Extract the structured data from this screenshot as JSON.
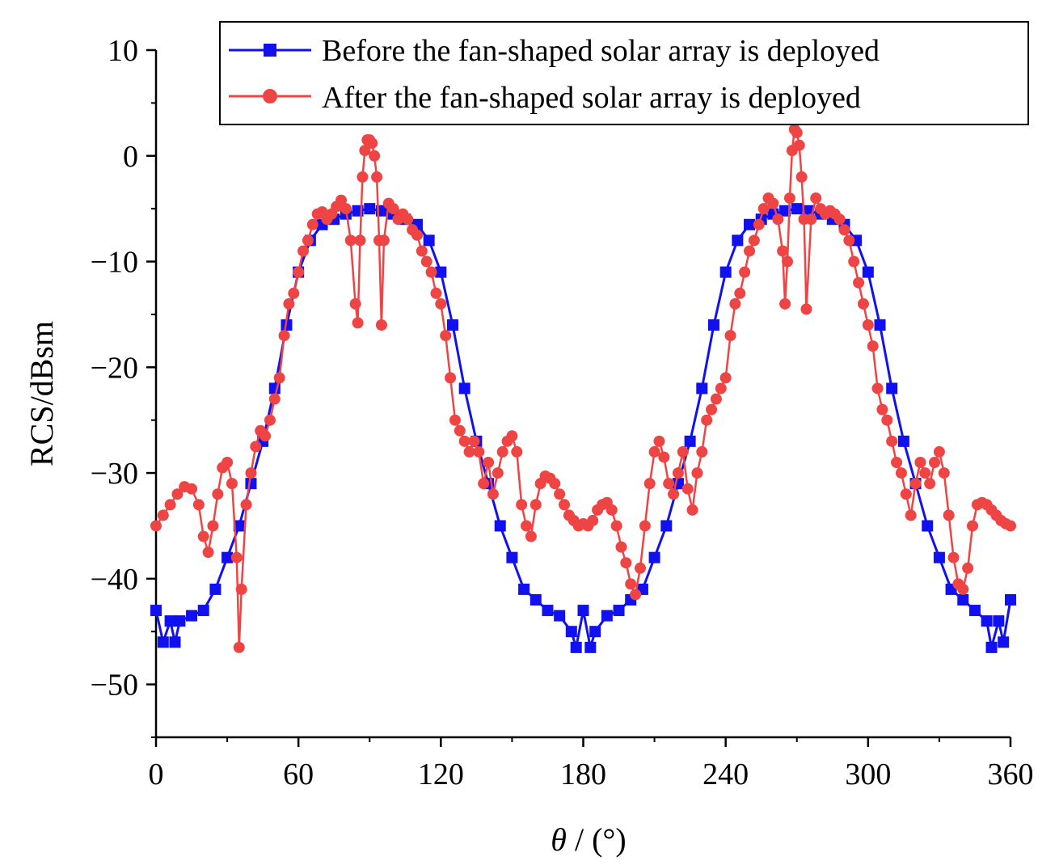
{
  "chart_data": {
    "type": "line",
    "xlabel_symbol": "θ",
    "xlabel_unit": " / (°)",
    "ylabel": "RCS/dBsm",
    "xlim": [
      0,
      360
    ],
    "ylim": [
      -55,
      10
    ],
    "x_ticks": [
      0,
      60,
      120,
      180,
      240,
      300,
      360
    ],
    "y_ticks": [
      10,
      0,
      -10,
      -20,
      -30,
      -40,
      -50
    ],
    "x_tick_labels": [
      "0",
      "60",
      "120",
      "180",
      "240",
      "300",
      "360"
    ],
    "y_tick_labels": [
      "10",
      "0",
      "−10",
      "−20",
      "−30",
      "−40",
      "−50"
    ],
    "grid": false,
    "legend_position": "top-right",
    "series": [
      {
        "name": "Before the fan-shaped solar array is deployed",
        "color": "#1010f0",
        "marker": "square",
        "points": [
          [
            0,
            -43
          ],
          [
            3,
            -46
          ],
          [
            6,
            -44
          ],
          [
            8,
            -46
          ],
          [
            10,
            -44
          ],
          [
            15,
            -43.5
          ],
          [
            20,
            -43
          ],
          [
            25,
            -41
          ],
          [
            30,
            -38
          ],
          [
            35,
            -35
          ],
          [
            40,
            -31
          ],
          [
            45,
            -27
          ],
          [
            50,
            -22
          ],
          [
            55,
            -16
          ],
          [
            60,
            -11
          ],
          [
            65,
            -8
          ],
          [
            70,
            -6.5
          ],
          [
            75,
            -6
          ],
          [
            80,
            -5.5
          ],
          [
            85,
            -5.2
          ],
          [
            90,
            -5
          ],
          [
            95,
            -5.2
          ],
          [
            100,
            -5.5
          ],
          [
            105,
            -6
          ],
          [
            110,
            -6.5
          ],
          [
            115,
            -8
          ],
          [
            120,
            -11
          ],
          [
            125,
            -16
          ],
          [
            130,
            -22
          ],
          [
            135,
            -27
          ],
          [
            140,
            -31
          ],
          [
            145,
            -35
          ],
          [
            150,
            -38
          ],
          [
            155,
            -41
          ],
          [
            160,
            -42
          ],
          [
            165,
            -43
          ],
          [
            170,
            -43.5
          ],
          [
            175,
            -45
          ],
          [
            177,
            -46.5
          ],
          [
            180,
            -43
          ],
          [
            183,
            -46.5
          ],
          [
            185,
            -45
          ],
          [
            190,
            -43.5
          ],
          [
            195,
            -43
          ],
          [
            200,
            -42
          ],
          [
            205,
            -41
          ],
          [
            210,
            -38
          ],
          [
            215,
            -35
          ],
          [
            220,
            -31
          ],
          [
            225,
            -27
          ],
          [
            230,
            -22
          ],
          [
            235,
            -16
          ],
          [
            240,
            -11
          ],
          [
            245,
            -8
          ],
          [
            250,
            -6.5
          ],
          [
            255,
            -6
          ],
          [
            260,
            -5.5
          ],
          [
            265,
            -5.2
          ],
          [
            270,
            -5
          ],
          [
            275,
            -5.2
          ],
          [
            280,
            -5.5
          ],
          [
            285,
            -6
          ],
          [
            290,
            -6.5
          ],
          [
            295,
            -8
          ],
          [
            300,
            -11
          ],
          [
            305,
            -16
          ],
          [
            310,
            -22
          ],
          [
            315,
            -27
          ],
          [
            320,
            -31
          ],
          [
            325,
            -35
          ],
          [
            330,
            -38
          ],
          [
            335,
            -41
          ],
          [
            340,
            -42
          ],
          [
            345,
            -43
          ],
          [
            350,
            -44
          ],
          [
            352,
            -46.5
          ],
          [
            355,
            -44
          ],
          [
            357,
            -46
          ],
          [
            360,
            -42
          ]
        ]
      },
      {
        "name": "After the fan-shaped solar array is deployed",
        "color": "#ee4444",
        "marker": "circle",
        "points": [
          [
            0,
            -35
          ],
          [
            3,
            -34
          ],
          [
            6,
            -33
          ],
          [
            9,
            -32
          ],
          [
            12,
            -31.3
          ],
          [
            15,
            -31.5
          ],
          [
            18,
            -33
          ],
          [
            20,
            -36
          ],
          [
            22,
            -37.5
          ],
          [
            24,
            -35
          ],
          [
            26,
            -32
          ],
          [
            28,
            -29.5
          ],
          [
            30,
            -29
          ],
          [
            32,
            -31
          ],
          [
            34,
            -38
          ],
          [
            35,
            -46.5
          ],
          [
            36,
            -41
          ],
          [
            38,
            -33
          ],
          [
            40,
            -30
          ],
          [
            42,
            -27.5
          ],
          [
            44,
            -26
          ],
          [
            46,
            -26.5
          ],
          [
            48,
            -25
          ],
          [
            50,
            -23
          ],
          [
            52,
            -21
          ],
          [
            54,
            -17
          ],
          [
            56,
            -14
          ],
          [
            58,
            -13
          ],
          [
            60,
            -11
          ],
          [
            62,
            -9
          ],
          [
            64,
            -8
          ],
          [
            66,
            -6.5
          ],
          [
            68,
            -5.5
          ],
          [
            70,
            -5.3
          ],
          [
            72,
            -6
          ],
          [
            74,
            -5.5
          ],
          [
            76,
            -4.8
          ],
          [
            78,
            -4.2
          ],
          [
            80,
            -5
          ],
          [
            82,
            -8
          ],
          [
            84,
            -14
          ],
          [
            85,
            -15.8
          ],
          [
            86,
            -8
          ],
          [
            87,
            -2
          ],
          [
            88,
            0.5
          ],
          [
            89,
            1.5
          ],
          [
            90,
            1.5
          ],
          [
            91,
            1.2
          ],
          [
            92,
            0
          ],
          [
            93,
            -2
          ],
          [
            94,
            -8
          ],
          [
            95,
            -16
          ],
          [
            96,
            -8
          ],
          [
            98,
            -4.5
          ],
          [
            100,
            -5
          ],
          [
            102,
            -6
          ],
          [
            104,
            -5.5
          ],
          [
            106,
            -6
          ],
          [
            108,
            -7
          ],
          [
            110,
            -7.5
          ],
          [
            112,
            -9
          ],
          [
            114,
            -10
          ],
          [
            116,
            -11
          ],
          [
            118,
            -13
          ],
          [
            120,
            -14
          ],
          [
            122,
            -17
          ],
          [
            124,
            -21
          ],
          [
            126,
            -25
          ],
          [
            128,
            -26
          ],
          [
            130,
            -27
          ],
          [
            132,
            -28
          ],
          [
            134,
            -27
          ],
          [
            136,
            -28
          ],
          [
            138,
            -31
          ],
          [
            140,
            -29
          ],
          [
            142,
            -32
          ],
          [
            144,
            -30
          ],
          [
            146,
            -28
          ],
          [
            148,
            -27
          ],
          [
            150,
            -26.5
          ],
          [
            152,
            -28
          ],
          [
            154,
            -33
          ],
          [
            156,
            -35
          ],
          [
            158,
            -36
          ],
          [
            160,
            -33
          ],
          [
            162,
            -31
          ],
          [
            164,
            -30.3
          ],
          [
            166,
            -30.5
          ],
          [
            168,
            -31
          ],
          [
            170,
            -32
          ],
          [
            172,
            -33
          ],
          [
            174,
            -34
          ],
          [
            176,
            -34.5
          ],
          [
            178,
            -35
          ],
          [
            180,
            -34.8
          ],
          [
            182,
            -35
          ],
          [
            184,
            -34.5
          ],
          [
            186,
            -33.5
          ],
          [
            188,
            -33
          ],
          [
            190,
            -32.8
          ],
          [
            192,
            -33.5
          ],
          [
            194,
            -35
          ],
          [
            196,
            -37
          ],
          [
            198,
            -38.5
          ],
          [
            200,
            -40.5
          ],
          [
            202,
            -41.5
          ],
          [
            204,
            -39
          ],
          [
            206,
            -35
          ],
          [
            208,
            -31
          ],
          [
            210,
            -28
          ],
          [
            212,
            -27
          ],
          [
            214,
            -28.5
          ],
          [
            216,
            -31
          ],
          [
            218,
            -32
          ],
          [
            220,
            -30
          ],
          [
            222,
            -28
          ],
          [
            224,
            -31.5
          ],
          [
            226,
            -33.5
          ],
          [
            228,
            -30
          ],
          [
            230,
            -28
          ],
          [
            232,
            -25
          ],
          [
            234,
            -24
          ],
          [
            236,
            -23
          ],
          [
            238,
            -22
          ],
          [
            240,
            -21
          ],
          [
            242,
            -17
          ],
          [
            244,
            -14
          ],
          [
            246,
            -13
          ],
          [
            248,
            -11
          ],
          [
            250,
            -9
          ],
          [
            252,
            -8
          ],
          [
            254,
            -6.5
          ],
          [
            256,
            -5
          ],
          [
            258,
            -4
          ],
          [
            260,
            -4.5
          ],
          [
            262,
            -6
          ],
          [
            264,
            -9
          ],
          [
            265,
            -14
          ],
          [
            266,
            -10
          ],
          [
            267,
            -4
          ],
          [
            268,
            0.5
          ],
          [
            269,
            2.5
          ],
          [
            270,
            2.2
          ],
          [
            271,
            1
          ],
          [
            272,
            -2
          ],
          [
            273,
            -6
          ],
          [
            274,
            -14.5
          ],
          [
            276,
            -6
          ],
          [
            278,
            -4
          ],
          [
            280,
            -5
          ],
          [
            282,
            -5.5
          ],
          [
            284,
            -5.2
          ],
          [
            286,
            -5.5
          ],
          [
            288,
            -6
          ],
          [
            290,
            -7
          ],
          [
            292,
            -8
          ],
          [
            294,
            -10
          ],
          [
            296,
            -12
          ],
          [
            298,
            -14
          ],
          [
            300,
            -16
          ],
          [
            302,
            -18
          ],
          [
            304,
            -22
          ],
          [
            306,
            -24
          ],
          [
            308,
            -25
          ],
          [
            310,
            -27
          ],
          [
            312,
            -29
          ],
          [
            314,
            -30
          ],
          [
            316,
            -32
          ],
          [
            318,
            -34
          ],
          [
            320,
            -31
          ],
          [
            322,
            -29
          ],
          [
            324,
            -30
          ],
          [
            326,
            -31
          ],
          [
            328,
            -29
          ],
          [
            330,
            -28
          ],
          [
            332,
            -30
          ],
          [
            334,
            -34
          ],
          [
            336,
            -38
          ],
          [
            338,
            -40.5
          ],
          [
            340,
            -41
          ],
          [
            342,
            -39
          ],
          [
            344,
            -35
          ],
          [
            346,
            -33
          ],
          [
            348,
            -32.8
          ],
          [
            350,
            -33
          ],
          [
            352,
            -33.5
          ],
          [
            354,
            -34
          ],
          [
            356,
            -34.5
          ],
          [
            358,
            -34.8
          ],
          [
            360,
            -35
          ]
        ]
      }
    ]
  }
}
